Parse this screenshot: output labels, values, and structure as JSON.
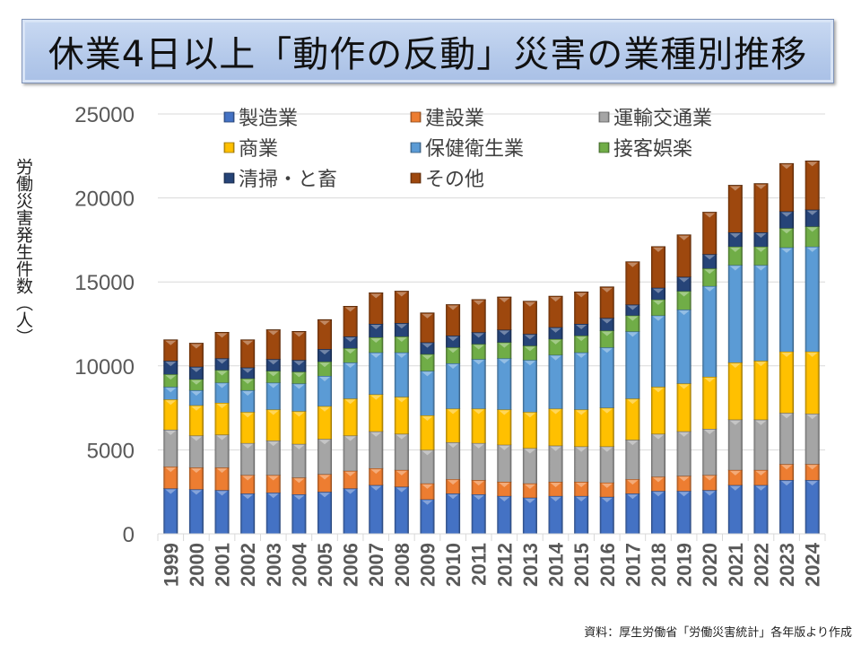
{
  "title": "休業4日以上「動作の反動」災害の業種別推移",
  "ylabel_text": "労働災害発生件数（人）",
  "source": "資料：厚生労働省「労働災害統計」各年版より作成",
  "chart_data": {
    "type": "bar",
    "stacked": true,
    "title": "休業4日以上「動作の反動」災害の業種別推移",
    "xlabel": "",
    "ylabel": "労働災害発生件数（人）",
    "ylim": [
      0,
      25000
    ],
    "yticks": [
      0,
      5000,
      10000,
      15000,
      20000,
      25000
    ],
    "grid": true,
    "legend_position": "top-inside",
    "categories": [
      "1999",
      "2000",
      "2001",
      "2002",
      "2003",
      "2004",
      "2005",
      "2006",
      "2007",
      "2008",
      "2009",
      "2010",
      "2011",
      "2012",
      "2013",
      "2014",
      "2015",
      "2016",
      "2017",
      "2018",
      "2019",
      "2020",
      "2021",
      "2022",
      "2023",
      "2024"
    ],
    "series": [
      {
        "name": "製造業",
        "color": "#4472c4",
        "values": [
          2700,
          2650,
          2600,
          2400,
          2450,
          2350,
          2500,
          2700,
          2900,
          2800,
          2050,
          2400,
          2350,
          2250,
          2150,
          2250,
          2250,
          2200,
          2400,
          2550,
          2550,
          2600,
          2900,
          2900,
          3200,
          3200
        ]
      },
      {
        "name": "建設業",
        "color": "#ed7d31",
        "values": [
          1300,
          1300,
          1350,
          1100,
          1050,
          1000,
          1050,
          1050,
          1000,
          1000,
          950,
          850,
          850,
          850,
          850,
          850,
          850,
          850,
          850,
          850,
          900,
          900,
          900,
          900,
          950,
          950
        ]
      },
      {
        "name": "運輸交通業",
        "color": "#a5a5a5",
        "values": [
          2200,
          1900,
          1950,
          1900,
          2050,
          2000,
          2100,
          2100,
          2200,
          2150,
          2000,
          2200,
          2200,
          2200,
          2100,
          2150,
          2100,
          2150,
          2350,
          2550,
          2650,
          2750,
          3000,
          3000,
          3050,
          3000
        ]
      },
      {
        "name": "商業",
        "color": "#ffc000",
        "values": [
          1800,
          1800,
          1900,
          1850,
          1850,
          1950,
          1950,
          2200,
          2200,
          2200,
          2050,
          2000,
          2050,
          2100,
          2150,
          2200,
          2200,
          2300,
          2450,
          2800,
          2850,
          3100,
          3400,
          3500,
          3650,
          3700
        ]
      },
      {
        "name": "保健衛生業",
        "color": "#5b9bd5",
        "values": [
          750,
          900,
          1200,
          1300,
          1600,
          1650,
          1800,
          2150,
          2500,
          2650,
          2650,
          2700,
          2950,
          3050,
          3100,
          3200,
          3400,
          3600,
          4000,
          4250,
          4400,
          5400,
          5800,
          5700,
          6200,
          6250
        ]
      },
      {
        "name": "接客娯楽",
        "color": "#70ad47",
        "values": [
          750,
          650,
          750,
          700,
          700,
          700,
          850,
          850,
          900,
          950,
          1000,
          950,
          900,
          950,
          850,
          950,
          1000,
          1000,
          950,
          950,
          1100,
          1050,
          1100,
          1100,
          1150,
          1200
        ]
      },
      {
        "name": "清掃・と畜",
        "color": "#264478",
        "values": [
          800,
          750,
          700,
          650,
          700,
          700,
          750,
          700,
          800,
          800,
          700,
          700,
          700,
          750,
          700,
          700,
          700,
          750,
          650,
          700,
          850,
          850,
          850,
          850,
          1000,
          1000
        ]
      },
      {
        "name": "その他",
        "color": "#9e480e",
        "values": [
          1250,
          1400,
          1550,
          1650,
          1750,
          1700,
          1750,
          1800,
          1850,
          1900,
          1750,
          1850,
          1950,
          1950,
          1950,
          1850,
          1900,
          1850,
          2550,
          2450,
          2500,
          2500,
          2800,
          2900,
          2850,
          2900
        ]
      }
    ]
  }
}
